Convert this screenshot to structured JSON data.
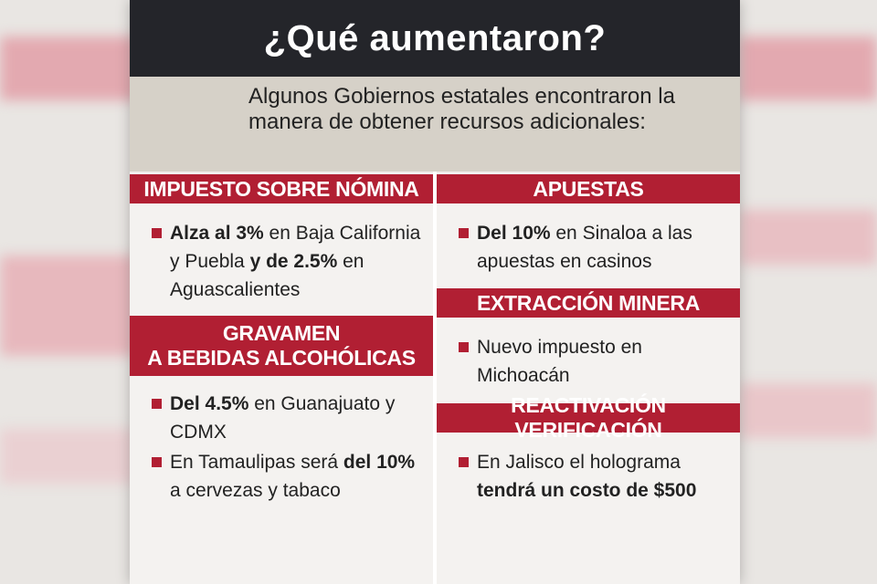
{
  "title": "¿Qué aumentaron?",
  "intro": "Algunos Gobiernos estatales encontraron la manera de obtener recursos adicionales:",
  "colors": {
    "header_red": "#b11f33",
    "title_bg": "#24252a",
    "intro_bg": "#d6d1c8"
  },
  "sections": {
    "nomina": {
      "header": "IMPUESTO SOBRE NÓMINA",
      "b1": {
        "s1": "Alza al 3%",
        "s2": " en Baja California y Puebla ",
        "s3": "y de 2.5%",
        "s4": " en Aguascalientes"
      }
    },
    "gravamen": {
      "header_l1": "GRAVAMEN",
      "header_l2": "A BEBIDAS ALCOHÓLICAS",
      "b1": {
        "s1": "Del 4.5%",
        "s2": " en Guanajuato y CDMX"
      },
      "b2": {
        "s1": "En Tamaulipas será ",
        "s2": "del 10%",
        "s3": " a cervezas y tabaco"
      }
    },
    "apuestas": {
      "header": "APUESTAS",
      "b1": {
        "s1": "Del 10%",
        "s2": " en Sinaloa a las apuestas en casinos"
      }
    },
    "mineria": {
      "header": "EXTRACCIÓN MINERA",
      "b1": {
        "s1": "Nuevo impuesto en Michoacán"
      }
    },
    "verificacion": {
      "header": "REACTIVACIÓN VERIFICACIÓN",
      "b1": {
        "s1": "En Jalisco el holograma ",
        "s2": "tendrá un costo de $500"
      }
    }
  }
}
